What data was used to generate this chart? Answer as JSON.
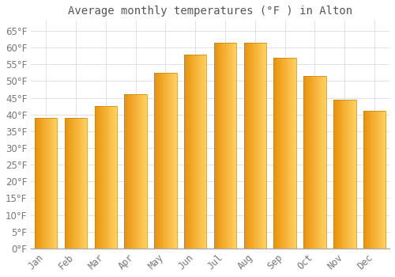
{
  "title": "Average monthly temperatures (°F ) in Alton",
  "months": [
    "Jan",
    "Feb",
    "Mar",
    "Apr",
    "May",
    "Jun",
    "Jul",
    "Aug",
    "Sep",
    "Oct",
    "Nov",
    "Dec"
  ],
  "values": [
    39,
    39,
    42.5,
    46,
    52.5,
    58,
    61.5,
    61.5,
    57,
    51.5,
    44.5,
    41
  ],
  "bar_color_main": "#FFA620",
  "bar_color_left": "#E8920A",
  "bar_color_right": "#FFD060",
  "background_color": "#FFFFFF",
  "plot_bg_color": "#FFFFFF",
  "grid_color": "#DDDDDD",
  "text_color": "#777777",
  "title_color": "#555555",
  "spine_color": "#AAAAAA",
  "ylim": [
    0,
    68
  ],
  "yticks": [
    0,
    5,
    10,
    15,
    20,
    25,
    30,
    35,
    40,
    45,
    50,
    55,
    60,
    65
  ],
  "title_fontsize": 10,
  "tick_fontsize": 8.5,
  "bar_width": 0.75
}
